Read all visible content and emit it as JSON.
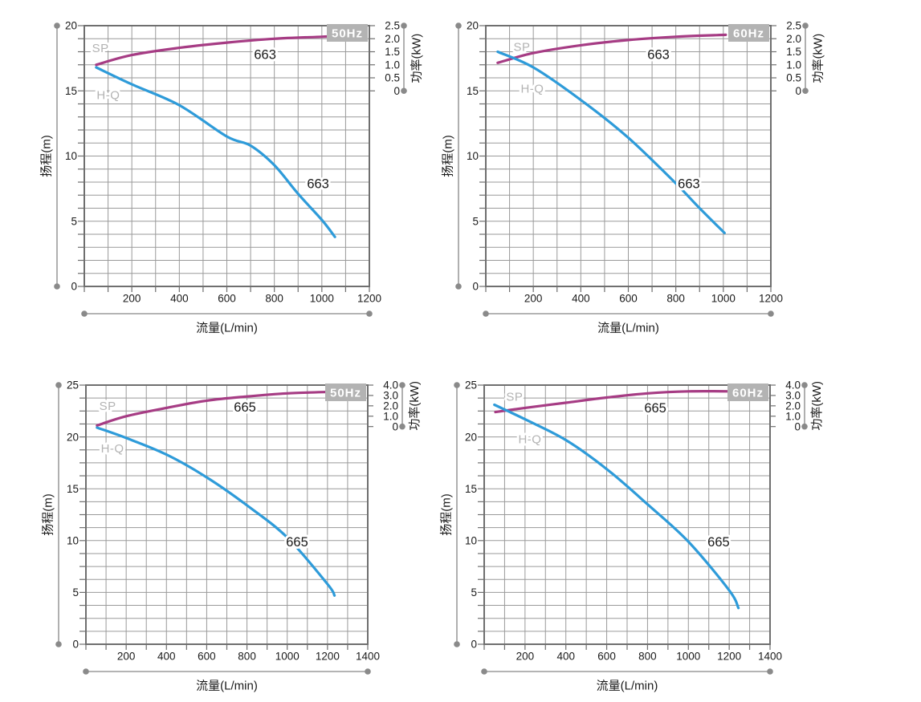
{
  "page": {
    "background": "#ffffff"
  },
  "colors": {
    "hq_curve": "#2E9BD9",
    "sp_curve": "#A63C84",
    "grid": "#9A9A9A",
    "plot_border": "#6F6F6F",
    "tick": "#6F6F6F",
    "text": "#1A1A1A",
    "dimension_line": "#9C9C9C",
    "dimension_dot": "#8A8A8A",
    "gray_label": "#B3B3B3",
    "badge_bg": "#B3B3B3",
    "badge_text": "#FFFFFF"
  },
  "chart_data": {
    "type": "line",
    "grid": "on",
    "charts": [
      {
        "id": "663-50hz",
        "badge": "50Hz",
        "model": "663",
        "x": {
          "title": "流量(L/min)",
          "min": 0,
          "max": 1200,
          "grid_step": 100,
          "ticks": [
            200,
            400,
            600,
            800,
            1000,
            1200
          ]
        },
        "y": {
          "title": "扬程(m)",
          "min": 0,
          "max": 20,
          "divisions": 20,
          "ticks": [
            0,
            5,
            10,
            15,
            20
          ]
        },
        "y2": {
          "title": "功率(kW)",
          "labels": [
            "2.5",
            "2.0",
            "1.5",
            "1.0",
            "0.5",
            "0"
          ],
          "top_unit": 20,
          "zero_unit": 15
        },
        "series": [
          {
            "key": "sp",
            "tag": "SP",
            "color": "sp_curve",
            "model_label": "663",
            "points": [
              [
                50,
                17.0
              ],
              [
                200,
                17.75
              ],
              [
                400,
                18.3
              ],
              [
                600,
                18.7
              ],
              [
                800,
                19.0
              ],
              [
                1000,
                19.15
              ],
              [
                1055,
                19.2
              ]
            ],
            "tag_at": [
              68,
              18.3
            ],
            "model_at": [
              761,
              17.8
            ]
          },
          {
            "key": "hq",
            "tag": "H-Q",
            "color": "hq_curve",
            "model_label": "663",
            "points": [
              [
                50,
                16.8
              ],
              [
                200,
                15.5
              ],
              [
                400,
                13.9
              ],
              [
                600,
                11.5
              ],
              [
                700,
                10.8
              ],
              [
                800,
                9.3
              ],
              [
                900,
                7.1
              ],
              [
                1000,
                5.1
              ],
              [
                1055,
                3.8
              ]
            ],
            "tag_at": [
              101,
              14.7
            ],
            "model_at": [
              984,
              7.9
            ]
          }
        ]
      },
      {
        "id": "663-60hz",
        "badge": "60Hz",
        "model": "663",
        "x": {
          "title": "流量(L/min)",
          "min": 0,
          "max": 1200,
          "grid_step": 100,
          "ticks": [
            200,
            400,
            600,
            800,
            1000,
            1200
          ]
        },
        "y": {
          "title": "扬程(m)",
          "min": 0,
          "max": 20,
          "divisions": 20,
          "ticks": [
            0,
            5,
            10,
            15,
            20
          ]
        },
        "y2": {
          "title": "功率(kW)",
          "labels": [
            "2.5",
            "2.0",
            "1.5",
            "1.0",
            "0.5",
            "0"
          ],
          "top_unit": 20,
          "zero_unit": 15
        },
        "series": [
          {
            "key": "sp",
            "tag": "SP",
            "color": "sp_curve",
            "model_label": "663",
            "points": [
              [
                50,
                17.15
              ],
              [
                200,
                17.9
              ],
              [
                400,
                18.5
              ],
              [
                600,
                18.9
              ],
              [
                800,
                19.15
              ],
              [
                1010,
                19.3
              ]
            ],
            "tag_at": [
              152,
              18.4
            ],
            "model_at": [
              727,
              17.8
            ]
          },
          {
            "key": "hq",
            "tag": "H-Q",
            "color": "hq_curve",
            "model_label": "663",
            "points": [
              [
                50,
                18.0
              ],
              [
                200,
                16.8
              ],
              [
                400,
                14.3
              ],
              [
                600,
                11.4
              ],
              [
                800,
                7.9
              ],
              [
                900,
                6.0
              ],
              [
                1005,
                4.1
              ]
            ],
            "tag_at": [
              196,
              15.2
            ],
            "model_at": [
              855,
              7.9
            ]
          }
        ]
      },
      {
        "id": "665-50hz",
        "badge": "50Hz",
        "model": "665",
        "x": {
          "title": "流量(L/min)",
          "min": 0,
          "max": 1400,
          "grid_step": 100,
          "ticks": [
            200,
            400,
            600,
            800,
            1000,
            1200,
            1400
          ]
        },
        "y": {
          "title": "扬程(m)",
          "min": 0,
          "max": 25,
          "divisions": 20,
          "ticks": [
            0,
            5,
            10,
            15,
            20,
            25
          ]
        },
        "y2": {
          "title": "功率(kW)",
          "labels": [
            "4.0",
            "3.0",
            "2.0",
            "1.0",
            "0"
          ],
          "top_unit": 25,
          "zero_unit": 21
        },
        "series": [
          {
            "key": "sp",
            "tag": "SP",
            "color": "sp_curve",
            "model_label": "665",
            "points": [
              [
                55,
                21.1
              ],
              [
                200,
                22.0
              ],
              [
                400,
                22.8
              ],
              [
                600,
                23.5
              ],
              [
                800,
                23.9
              ],
              [
                1000,
                24.2
              ],
              [
                1215,
                24.35
              ]
            ],
            "tag_at": [
              108,
              23.0
            ],
            "model_at": [
              790,
              22.9
            ]
          },
          {
            "key": "hq",
            "tag": "H-Q",
            "color": "hq_curve",
            "model_label": "665",
            "points": [
              [
                55,
                20.9
              ],
              [
                200,
                19.9
              ],
              [
                400,
                18.3
              ],
              [
                600,
                16.1
              ],
              [
                800,
                13.4
              ],
              [
                1000,
                10.3
              ],
              [
                1200,
                5.8
              ],
              [
                1235,
                4.7
              ]
            ],
            "tag_at": [
              132,
              18.9
            ],
            "model_at": [
              1049,
              9.9
            ]
          }
        ]
      },
      {
        "id": "665-60hz",
        "badge": "60Hz",
        "model": "665",
        "x": {
          "title": "流量(L/min)",
          "min": 0,
          "max": 1400,
          "grid_step": 100,
          "ticks": [
            200,
            400,
            600,
            800,
            1000,
            1200,
            1400
          ]
        },
        "y": {
          "title": "扬程(m)",
          "min": 0,
          "max": 25,
          "divisions": 20,
          "ticks": [
            0,
            5,
            10,
            15,
            20,
            25
          ]
        },
        "y2": {
          "title": "功率(kW)",
          "labels": [
            "4.0",
            "3.0",
            "2.0",
            "1.0",
            "0"
          ],
          "top_unit": 25,
          "zero_unit": 21
        },
        "series": [
          {
            "key": "sp",
            "tag": "SP",
            "color": "sp_curve",
            "model_label": "665",
            "points": [
              [
                55,
                22.4
              ],
              [
                200,
                22.8
              ],
              [
                400,
                23.3
              ],
              [
                600,
                23.8
              ],
              [
                800,
                24.2
              ],
              [
                1000,
                24.4
              ],
              [
                1210,
                24.4
              ]
            ],
            "tag_at": [
              149,
              23.9
            ],
            "model_at": [
              838,
              22.8
            ]
          },
          {
            "key": "hq",
            "tag": "H-Q",
            "color": "hq_curve",
            "model_label": "665",
            "points": [
              [
                50,
                23.1
              ],
              [
                200,
                21.7
              ],
              [
                400,
                19.7
              ],
              [
                600,
                16.9
              ],
              [
                800,
                13.5
              ],
              [
                1000,
                9.9
              ],
              [
                1200,
                5.2
              ],
              [
                1245,
                3.5
              ]
            ],
            "tag_at": [
              224,
              19.8
            ],
            "model_at": [
              1148,
              9.9
            ]
          }
        ]
      }
    ]
  }
}
